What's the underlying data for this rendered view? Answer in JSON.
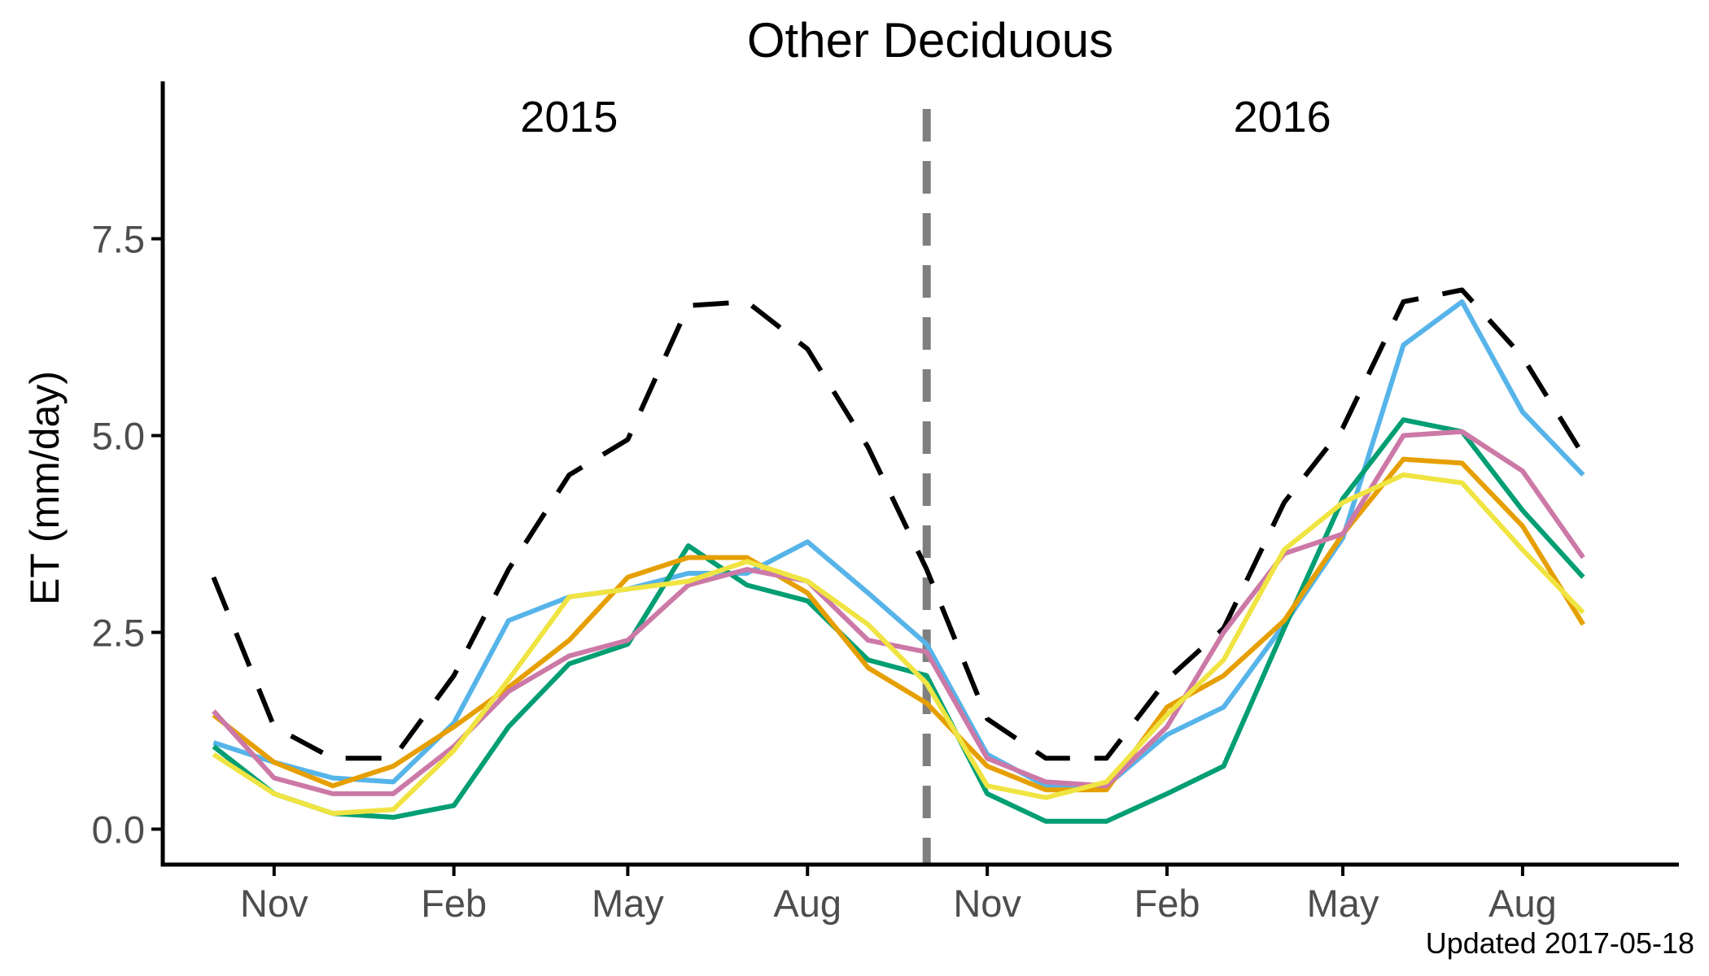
{
  "chart_data": {
    "type": "line",
    "title": "Other Deciduous",
    "ylabel": "ET (mm/day)",
    "xlabel": "",
    "ylim": [
      -0.45,
      9.5
    ],
    "yticks": [
      "0.0",
      "2.5",
      "5.0",
      "7.5"
    ],
    "ytick_values": [
      0,
      2.5,
      5,
      7.5
    ],
    "xticks": [
      "Nov",
      "Feb",
      "May",
      "Aug",
      "Nov",
      "Feb",
      "May",
      "Aug"
    ],
    "xtick_values": [
      "2014-11-01",
      "2015-02-01",
      "2015-05-01",
      "2015-08-01",
      "2015-11-01",
      "2016-02-01",
      "2016-05-01",
      "2016-08-01"
    ],
    "xlim": [
      "2014-09-05",
      "2016-10-20"
    ],
    "year_labels": [
      "2015",
      "2016"
    ],
    "year_label_dates": [
      "2015-04-01",
      "2016-03-31"
    ],
    "year_divider": "2015-10-01",
    "note": "Updated  2017-05-18",
    "grid": false,
    "legend": "none",
    "dates": [
      "2014-10-01",
      "2014-11-01",
      "2014-12-01",
      "2015-01-01",
      "2015-02-01",
      "2015-03-01",
      "2015-04-01",
      "2015-05-01",
      "2015-06-01",
      "2015-07-01",
      "2015-08-01",
      "2015-09-01",
      "2015-10-01",
      "2015-11-01",
      "2015-12-01",
      "2016-01-01",
      "2016-02-01",
      "2016-03-01",
      "2016-04-01",
      "2016-05-01",
      "2016-06-01",
      "2016-07-01",
      "2016-08-01",
      "2016-09-01"
    ],
    "series": [
      {
        "color": "#000000",
        "dashed": true,
        "values": [
          3.2,
          1.3,
          0.9,
          0.9,
          1.95,
          3.3,
          4.5,
          4.95,
          6.65,
          6.7,
          6.1,
          4.85,
          3.3,
          1.4,
          0.9,
          0.9,
          1.9,
          2.55,
          4.15,
          5.1,
          6.7,
          6.85,
          6.0,
          4.75
        ]
      },
      {
        "color": "#56b4e9",
        "dashed": false,
        "values": [
          1.1,
          0.85,
          0.65,
          0.6,
          1.35,
          2.65,
          2.95,
          3.05,
          3.25,
          3.25,
          3.65,
          3.0,
          2.35,
          0.95,
          0.55,
          0.55,
          1.2,
          1.55,
          2.6,
          3.7,
          6.15,
          6.7,
          5.3,
          4.5
        ]
      },
      {
        "color": "#009e73",
        "dashed": false,
        "values": [
          1.05,
          0.45,
          0.2,
          0.15,
          0.3,
          1.3,
          2.1,
          2.35,
          3.6,
          3.1,
          2.9,
          2.15,
          1.95,
          0.45,
          0.1,
          0.1,
          0.45,
          0.8,
          2.55,
          4.2,
          5.2,
          5.05,
          4.05,
          3.2
        ]
      },
      {
        "color": "#e69f00",
        "dashed": false,
        "values": [
          1.45,
          0.85,
          0.55,
          0.8,
          1.3,
          1.8,
          2.4,
          3.2,
          3.45,
          3.45,
          3.0,
          2.05,
          1.6,
          0.8,
          0.5,
          0.5,
          1.55,
          1.95,
          2.65,
          3.75,
          4.7,
          4.65,
          3.85,
          2.6
        ]
      },
      {
        "color": "#cc79a7",
        "dashed": false,
        "values": [
          1.5,
          0.65,
          0.45,
          0.45,
          1.05,
          1.75,
          2.2,
          2.4,
          3.1,
          3.3,
          3.15,
          2.4,
          2.25,
          0.9,
          0.6,
          0.55,
          1.3,
          2.5,
          3.5,
          3.75,
          5.0,
          5.05,
          4.55,
          3.45
        ]
      },
      {
        "color": "#f0e442",
        "dashed": false,
        "values": [
          0.95,
          0.45,
          0.2,
          0.25,
          1.0,
          1.9,
          2.95,
          3.05,
          3.15,
          3.4,
          3.15,
          2.6,
          1.85,
          0.55,
          0.4,
          0.6,
          1.45,
          2.15,
          3.55,
          4.15,
          4.5,
          4.4,
          3.55,
          2.75
        ]
      }
    ]
  }
}
